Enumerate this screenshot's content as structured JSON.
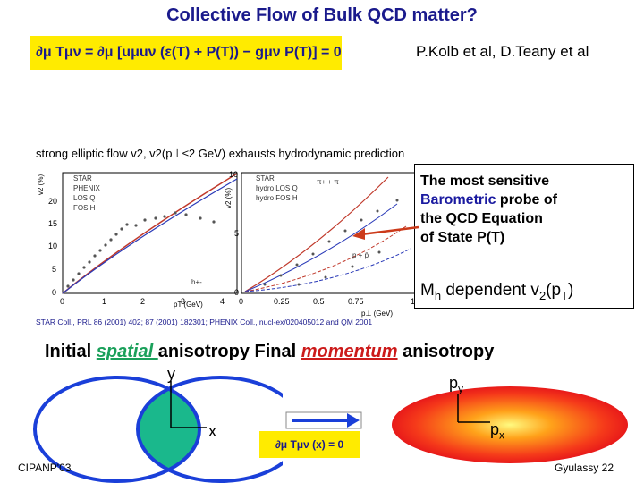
{
  "title": "Collective Flow of Bulk QCD matter?",
  "equation_top": "∂μ Tμν = ∂μ [uμuν (ε(T) + P(T)) − gμν P(T)] = 0",
  "authors": "P.Kolb et al, D.Teany et al",
  "figure": {
    "caption": "strong elliptic flow v2, v2(p⊥≤2 GeV) exhausts hydrodynamic prediction",
    "credit": "STAR Coll., PRL 86 (2001) 402; 87 (2001) 182301; PHENIX Coll., nucl-ex/020405012 and QM 2001",
    "left_panel": {
      "ylabel": "v2 (%)",
      "xlabel": "pT (GeV)",
      "legend": [
        "STAR",
        "PHENIX",
        "LOS Q",
        "FOS H"
      ],
      "annotation": "h+-",
      "x_ticks": [
        "0",
        "1",
        "2",
        "3",
        "4"
      ],
      "y_ticks": [
        "0",
        "5",
        "10",
        "15",
        "20"
      ]
    },
    "right_panel": {
      "ylabel": "v2 (%)",
      "xlabel": "p⊥ (GeV)",
      "legend": [
        "STAR",
        "hydro LOS Q",
        "hydro FOS H"
      ],
      "annotations": [
        "π+ + π−",
        "p + p̄"
      ],
      "x_ticks": [
        "0",
        "0.25",
        "0.5",
        "0.75",
        "1"
      ],
      "y_ticks": [
        "0",
        "5",
        "10"
      ]
    }
  },
  "probe_box": {
    "line1": "The most sensitive",
    "line2_highlight": "Barometric",
    "line2_rest": " probe of",
    "line3": "the QCD Equation",
    "line4": "of State  P(T)"
  },
  "mh_text": {
    "prefix": "M",
    "sub_h": "h",
    "middle": " dependent v",
    "sub_2": "2",
    "paren_open": "(p",
    "sub_T": "T",
    "paren_close": ")"
  },
  "spatial_line": {
    "w1": "Initial ",
    "spatial": "spatial ",
    "w2": "anisotropy  Final ",
    "momentum": "momentum",
    "w3": " anisotropy"
  },
  "diagram_left": {
    "y_label": "y",
    "x_label": "x"
  },
  "diagram_right": {
    "y_label": "py",
    "x_label": "px"
  },
  "equation_bottom": "∂μ Tμν (x) = 0",
  "footer_left": "CIPANP'03",
  "footer_right": "Gyulassy 22",
  "colors": {
    "title": "#1a1a8c",
    "highlight": "#ffeb00",
    "spatial": "#1aa05a",
    "momentum": "#cc1a1a",
    "ellipse_blue": "#1a3fd9",
    "green": "#1ab88c"
  }
}
